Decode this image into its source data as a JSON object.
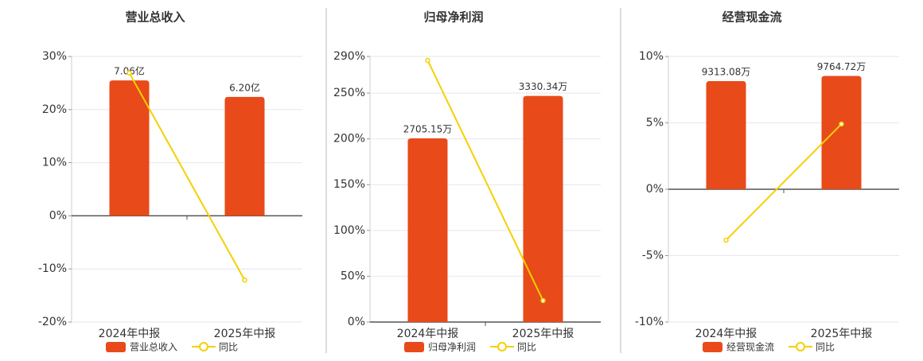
{
  "chart_data": [
    {
      "type": "bar",
      "title": "营业总收入",
      "categories": [
        "2024年中报",
        "2025年中报"
      ],
      "ylim": [
        -20,
        30
      ],
      "yticks": [
        {
          "value": -20,
          "label": "-20%"
        },
        {
          "value": -10,
          "label": "-10%"
        },
        {
          "value": 0,
          "label": "0%"
        },
        {
          "value": 10,
          "label": "10%"
        },
        {
          "value": 20,
          "label": "20%"
        },
        {
          "value": 30,
          "label": "30%"
        }
      ],
      "y2lim": [
        -5.54,
        8.31
      ],
      "grid": true,
      "series": [
        {
          "name": "营业总收入",
          "color": "#e84a1a",
          "axis": "y2",
          "values": [
            7.06,
            6.2
          ],
          "value_labels": [
            "7.06亿",
            "6.20亿"
          ]
        },
        {
          "name": "同比",
          "type": "line",
          "color": "#f5d000",
          "values": [
            26.9,
            -12.1
          ]
        }
      ]
    },
    {
      "type": "bar",
      "title": "归母净利润",
      "categories": [
        "2024年中报",
        "2025年中报"
      ],
      "ylim": [
        0,
        290
      ],
      "yticks": [
        {
          "value": 0,
          "label": "0%"
        },
        {
          "value": 50,
          "label": "50%"
        },
        {
          "value": 100,
          "label": "100%"
        },
        {
          "value": 150,
          "label": "150%"
        },
        {
          "value": 200,
          "label": "200%"
        },
        {
          "value": 250,
          "label": "250%"
        },
        {
          "value": 290,
          "label": "290%"
        }
      ],
      "y2lim": [
        0,
        3911
      ],
      "grid": true,
      "series": [
        {
          "name": "归母净利润",
          "color": "#e84a1a",
          "axis": "y2",
          "values": [
            2705.15,
            3330.34
          ],
          "value_labels": [
            "2705.15万",
            "3330.34万"
          ]
        },
        {
          "name": "同比",
          "type": "line",
          "color": "#f5d000",
          "values": [
            285.7,
            23.4
          ]
        }
      ]
    },
    {
      "type": "bar",
      "title": "经营现金流",
      "categories": [
        "2024年中报",
        "2025年中报"
      ],
      "ylim": [
        -10,
        10
      ],
      "yticks": [
        {
          "value": -10,
          "label": "-10%"
        },
        {
          "value": -5,
          "label": "-5%"
        },
        {
          "value": 0,
          "label": "0%"
        },
        {
          "value": 5,
          "label": "5%"
        },
        {
          "value": 10,
          "label": "10%"
        }
      ],
      "y2lim": [
        -11440,
        11440
      ],
      "grid": true,
      "series": [
        {
          "name": "经营现金流",
          "color": "#e84a1a",
          "axis": "y2",
          "values": [
            9313.08,
            9764.72
          ],
          "value_labels": [
            "9313.08万",
            "9764.72万"
          ]
        },
        {
          "name": "同比",
          "type": "line",
          "color": "#f5d000",
          "values": [
            -3.83,
            4.91
          ]
        }
      ]
    }
  ]
}
